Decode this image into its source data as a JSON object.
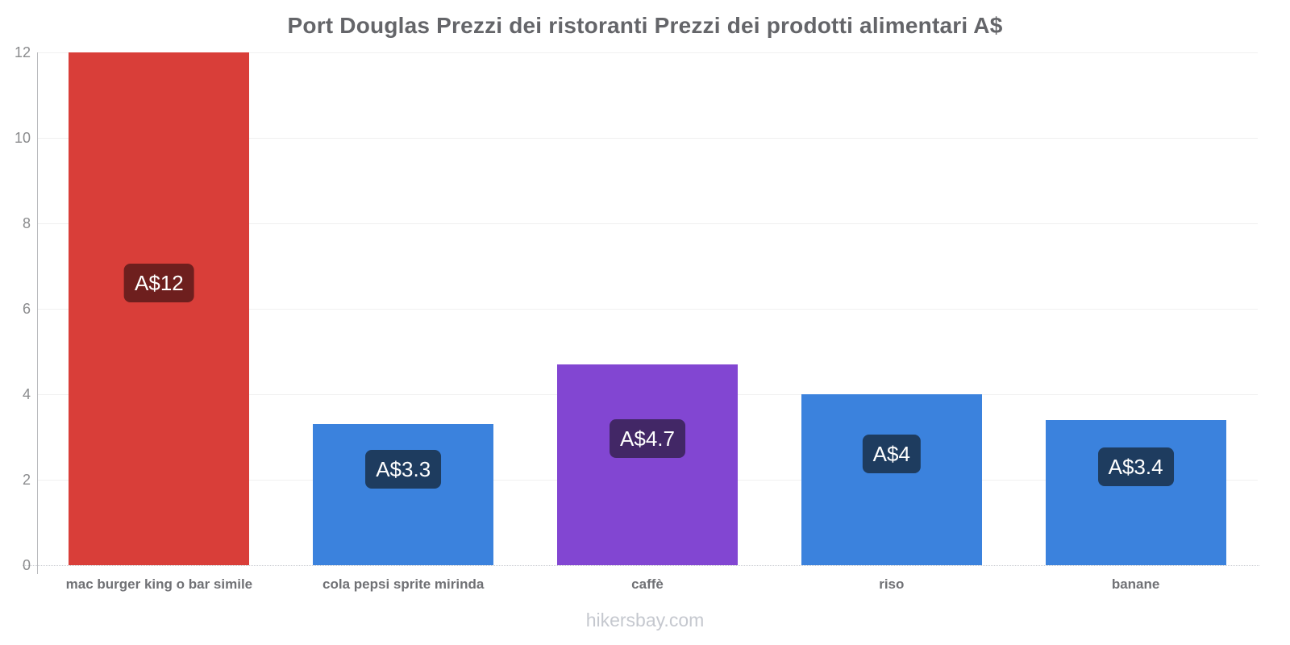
{
  "title": "Port Douglas Prezzi dei ristoranti Prezzi dei prodotti alimentari A$",
  "footer": "hikersbay.com",
  "chart_data": {
    "type": "bar",
    "title": "Port Douglas Prezzi dei ristoranti Prezzi dei prodotti alimentari A$",
    "categories": [
      "mac burger king o bar simile",
      "cola pepsi sprite mirinda",
      "caffè",
      "riso",
      "banane"
    ],
    "values": [
      12,
      3.3,
      4.7,
      4,
      3.4
    ],
    "value_labels": [
      "A$12",
      "A$3.3",
      "A$4.7",
      "A$4",
      "A$3.4"
    ],
    "bar_colors": [
      "#d93e39",
      "#3b82dd",
      "#8246d2",
      "#3b82dd",
      "#3b82dd"
    ],
    "badge_colors": [
      "#6e1f1e",
      "#1e3c5f",
      "#422766",
      "#1e3c5f",
      "#1e3c5f"
    ],
    "currency": "A$",
    "xlabel": "",
    "ylabel": "",
    "ylim": [
      0,
      12
    ],
    "yticks": [
      0,
      2,
      4,
      6,
      8,
      10,
      12
    ],
    "grid": true,
    "legend": false
  }
}
